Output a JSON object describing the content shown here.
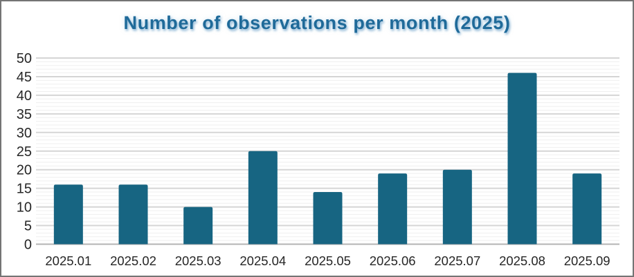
{
  "window": {
    "background_color": "#ffffff",
    "border_color": "#747474"
  },
  "chart_data": {
    "type": "bar",
    "title": "Number of observations per month (2025)",
    "categories": [
      "2025.01",
      "2025.02",
      "2025.03",
      "2025.04",
      "2025.05",
      "2025.06",
      "2025.07",
      "2025.08",
      "2025.09"
    ],
    "values": [
      16,
      16,
      10,
      25,
      14,
      19,
      20,
      46,
      19
    ],
    "xlabel": "",
    "ylabel": "",
    "ylim": [
      0,
      50
    ],
    "yticks": [
      0,
      5,
      10,
      15,
      20,
      25,
      30,
      35,
      40,
      45,
      50
    ],
    "ytick_step": 5,
    "yminor_step": 1,
    "grid": "major and minor horizontal gridlines",
    "legend": "none",
    "bar_color": "#176582",
    "title_color": "#1f6a99",
    "axis_tick_label_color": "#262626",
    "major_grid_color": "#d5d5d5",
    "minor_grid_color": "#efefef",
    "axis_line_color": "#b3b3b3"
  }
}
